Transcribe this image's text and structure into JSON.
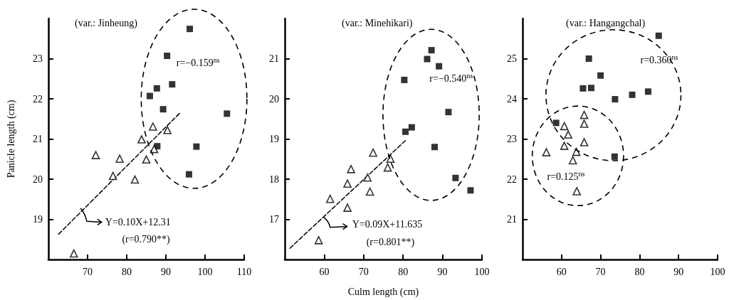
{
  "chart_data": [
    {
      "type": "scatter",
      "title": "(var.: Jinheung)",
      "ylabel": "Panicle length (cm)",
      "xlim": [
        60,
        110
      ],
      "xticks": [
        70,
        80,
        90,
        100,
        110
      ],
      "ylim": [
        18,
        24
      ],
      "yticks": [
        19,
        20,
        21,
        22,
        23
      ],
      "annotations": [
        "r=−0.159$^{ns}$",
        "Y=0.10X+12.31",
        "(r=0.790**)"
      ],
      "series": [
        {
          "color": "#000000",
          "marker": "square",
          "x": [
            96.1,
            90.3,
            91.6,
            87.7,
            85.9,
            89.3,
            105.6,
            87.8,
            97.8,
            95.9
          ],
          "values": [
            23.74,
            23.07,
            22.36,
            22.26,
            22.07,
            21.74,
            21.63,
            20.82,
            20.81,
            20.12
          ]
        },
        {
          "color": "#000000",
          "marker": "triangle",
          "x": [
            72.1,
            78.2,
            76.5,
            82.1,
            83.8,
            85.0,
            86.7,
            90.4,
            87.0,
            66.5
          ],
          "values": [
            20.6,
            20.51,
            20.08,
            19.99,
            20.99,
            20.49,
            21.31,
            21.22,
            20.75,
            18.15
          ]
        },
        {
          "type": "line",
          "color": "#000000",
          "line_style": "dashed",
          "marker": "none",
          "x": [
            62.6,
            93.6
          ],
          "values": [
            18.63,
            21.65
          ]
        }
      ]
    },
    {
      "type": "scatter",
      "title": "(var.: Minehikari)",
      "xlabel": "Culm length (cm)",
      "xlim": [
        50,
        100
      ],
      "xticks": [
        60,
        70,
        80,
        90,
        100
      ],
      "ylim": [
        16,
        22
      ],
      "yticks": [
        17,
        18,
        19,
        20,
        21
      ],
      "annotations": [
        "r=−0.540$^{ns}$",
        "Y=0.09X+11.635",
        "(r=0.801**)"
      ],
      "series": [
        {
          "color": "#000000",
          "marker": "square",
          "x": [
            87.2,
            86.1,
            89.1,
            80.3,
            91.5,
            80.6,
            82.2,
            88.0,
            93.3,
            97.1
          ],
          "values": [
            21.21,
            20.99,
            20.81,
            20.47,
            19.67,
            19.18,
            19.29,
            18.8,
            18.03,
            17.72
          ]
        },
        {
          "color": "#000000",
          "marker": "triangle",
          "x": [
            72.4,
            76.8,
            76.1,
            66.8,
            71.0,
            65.9,
            71.6,
            61.5,
            65.9,
            58.6
          ],
          "values": [
            18.66,
            18.51,
            18.29,
            18.25,
            18.04,
            17.89,
            17.69,
            17.51,
            17.29,
            16.48
          ]
        },
        {
          "type": "line",
          "color": "#000000",
          "line_style": "dashed",
          "marker": "none",
          "x": [
            51.3,
            80.8
          ],
          "values": [
            16.28,
            18.98
          ]
        }
      ]
    },
    {
      "type": "scatter",
      "title": "(var.: Hangangchal)",
      "xlim": [
        50,
        100
      ],
      "xticks": [
        60,
        70,
        80,
        90,
        100
      ],
      "ylim": [
        20,
        26
      ],
      "yticks": [
        21,
        22,
        23,
        24,
        25
      ],
      "annotations": [
        "r=0.360$^{ns}$",
        "r=0.125$^{ns}$"
      ],
      "series": [
        {
          "color": "#000000",
          "marker": "square",
          "x": [
            84.9,
            67.0,
            70.0,
            65.5,
            67.6,
            73.7,
            78.1,
            82.2,
            58.6,
            73.6
          ],
          "values": [
            25.57,
            25.0,
            24.58,
            24.26,
            24.27,
            23.99,
            24.1,
            24.18,
            23.4,
            22.56
          ]
        },
        {
          "color": "#000000",
          "marker": "triangle",
          "x": [
            65.8,
            65.8,
            60.7,
            61.7,
            65.8,
            60.7,
            63.8,
            56.1,
            62.9,
            63.9
          ],
          "values": [
            23.6,
            23.38,
            23.32,
            23.11,
            22.92,
            22.83,
            22.68,
            22.67,
            22.47,
            21.7
          ]
        }
      ]
    }
  ]
}
